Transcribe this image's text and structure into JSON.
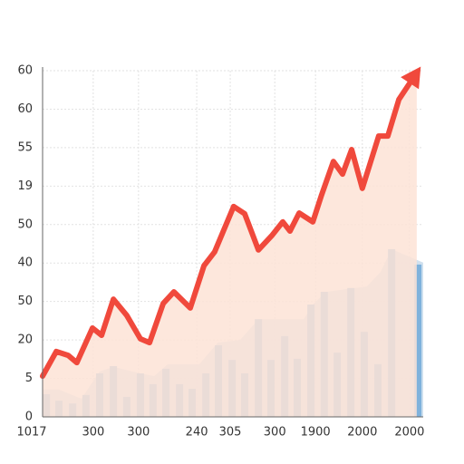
{
  "chart_data": {
    "type": "combo",
    "xlim": [
      0,
      100
    ],
    "ylim": [
      0,
      90
    ],
    "xticks": [
      {
        "value": 0,
        "label": "1017"
      },
      {
        "value": 13.3,
        "label": "300"
      },
      {
        "value": 25.2,
        "label": "300"
      },
      {
        "value": 40.5,
        "label": "240"
      },
      {
        "value": 49.3,
        "label": "305"
      },
      {
        "value": 61,
        "label": "300"
      },
      {
        "value": 71.7,
        "label": "1900"
      },
      {
        "value": 84,
        "label": "2000"
      },
      {
        "value": 96.4,
        "label": "2000"
      }
    ],
    "yticks": [
      0,
      {
        "value": 10,
        "label": "5"
      },
      {
        "value": 20,
        "label": "20"
      },
      {
        "value": 30,
        "label": "50"
      },
      {
        "value": 40,
        "label": "40"
      },
      {
        "value": 50,
        "label": "50"
      },
      {
        "value": 60,
        "label": "19"
      },
      {
        "value": 70,
        "label": "55"
      },
      {
        "value": 80,
        "label": "60"
      },
      {
        "value": 90,
        "label": "60"
      }
    ],
    "grid": true,
    "series": [
      {
        "type": "area",
        "color": "#c9dcec",
        "x": [
          0,
          4.3,
          10.2,
          15.0,
          18.6,
          25.7,
          29.3,
          32.9,
          41.2,
          46.0,
          51.9,
          56.7,
          68.6,
          71.0,
          74.5,
          85.2,
          88.8,
          91.7,
          100
        ],
        "values": [
          7.1,
          7.1,
          4.7,
          11.8,
          13.0,
          11.3,
          10.6,
          13.7,
          13.7,
          19.3,
          20.0,
          25.4,
          25.4,
          29.2,
          32.5,
          33.9,
          37.7,
          43.6,
          40.1
        ]
      },
      {
        "type": "bar",
        "color": "#7fb2dc",
        "x": [
          1.0,
          4.3,
          7.9,
          11.4,
          15.0,
          18.6,
          22.1,
          25.7,
          29.0,
          32.4,
          36.0,
          39.3,
          42.9,
          46.2,
          49.8,
          53.1,
          56.7,
          60.0,
          63.6,
          66.9,
          70.5,
          74.0,
          77.4,
          81.0,
          84.5,
          88.1,
          91.7,
          98.6
        ],
        "values": [
          5.9,
          4.2,
          3.5,
          5.7,
          11.3,
          13.2,
          5.2,
          11.3,
          8.5,
          12.5,
          8.5,
          7.3,
          11.3,
          18.6,
          14.8,
          11.3,
          25.4,
          14.8,
          21,
          15.1,
          29.2,
          32.5,
          16.7,
          33.5,
          22.1,
          13.7,
          43.6,
          39.6
        ]
      },
      {
        "type": "line",
        "color": "#f0493c",
        "fill": "#fde3d6",
        "x": [
          0,
          3.6,
          6.7,
          9.0,
          13.1,
          15.5,
          18.6,
          22.1,
          25.7,
          28.1,
          31.7,
          34.5,
          38.8,
          42.4,
          45.2,
          50.2,
          53.1,
          56.7,
          60.2,
          63.1,
          65.0,
          67.4,
          71.0,
          73.3,
          76.4,
          78.8,
          81.2,
          84.0,
          88.3,
          90.7,
          93.6,
          98.3
        ],
        "values": [
          10.6,
          17.0,
          16.0,
          14.1,
          23.1,
          21.2,
          30.6,
          26.4,
          20.3,
          19.3,
          29.5,
          32.5,
          28.3,
          39.3,
          42.9,
          54.7,
          52.8,
          43.4,
          47.1,
          50.7,
          48.3,
          53.0,
          50.7,
          57.7,
          66.4,
          63.1,
          69.5,
          59.4,
          73.0,
          73.0,
          82.5,
          89.5
        ]
      }
    ]
  }
}
